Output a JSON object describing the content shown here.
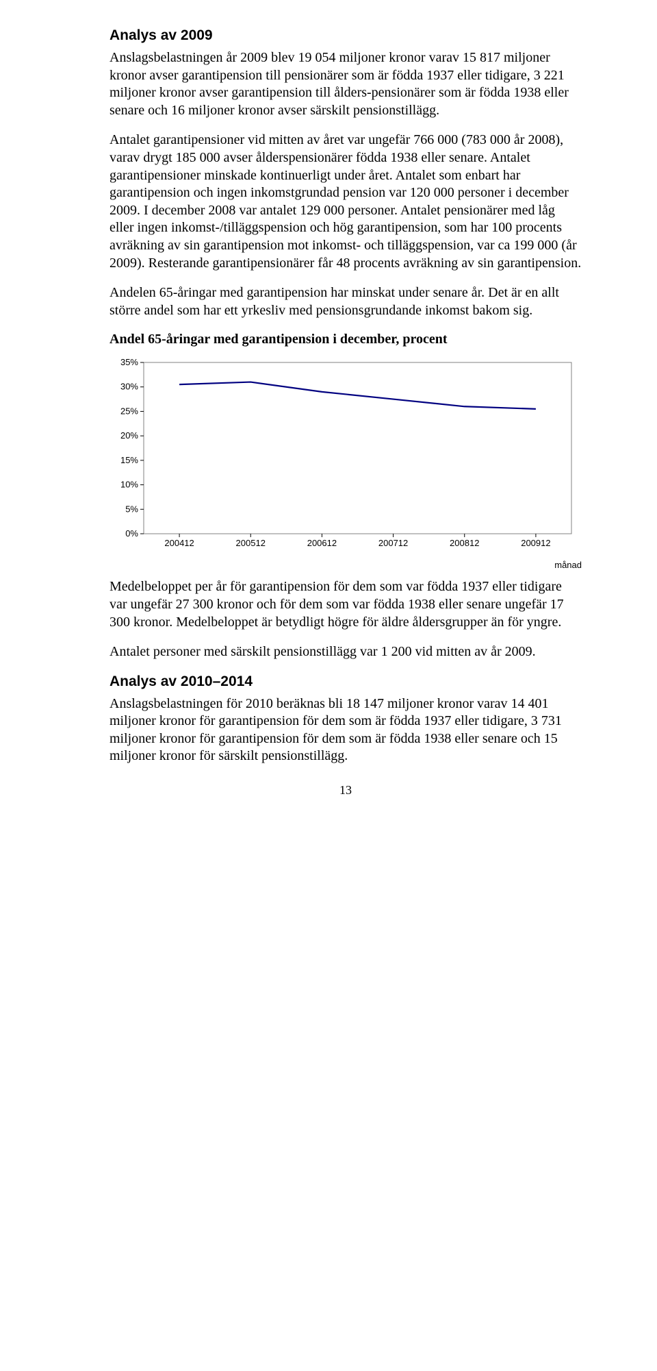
{
  "section1": {
    "heading": "Analys av 2009",
    "p1": "Anslagsbelastningen år 2009 blev 19 054 miljoner kronor varav 15 817 miljoner kronor avser garantipension till pensionärer som är födda 1937 eller tidigare, 3 221 miljoner kronor avser garantipension till ålders-pensionärer som är födda 1938 eller senare och 16 miljoner kronor avser särskilt pensionstillägg.",
    "p2": "Antalet garantipensioner vid mitten av året var ungefär 766 000 (783 000 år 2008), varav drygt 185 000 avser ålderspensionärer födda 1938 eller senare. Antalet garantipensioner minskade kontinuerligt under året. Antalet som enbart har garantipension och ingen inkomstgrundad pension var 120 000 personer i december 2009. I december 2008 var antalet 129 000 personer. Antalet pensionärer med låg eller ingen inkomst-/tilläggspension och hög garantipension, som har 100 procents avräkning av sin garantipension mot inkomst- och tilläggspension, var ca 199 000 (år 2009). Resterande garantipensionärer får 48 procents avräkning av sin garantipension.",
    "p3": "Andelen 65-åringar med garantipension har minskat under senare år. Det är en allt större andel som har ett yrkesliv med pensionsgrundande inkomst bakom sig."
  },
  "chart": {
    "title": "Andel 65-åringar med garantipension i december, procent",
    "type": "line",
    "x_categories": [
      "200412",
      "200512",
      "200612",
      "200712",
      "200812",
      "200912"
    ],
    "y_values": [
      30.5,
      31.0,
      29.0,
      27.5,
      26.0,
      25.5
    ],
    "ylim": [
      0,
      35
    ],
    "ytick_step": 5,
    "y_tick_labels": [
      "0%",
      "5%",
      "10%",
      "15%",
      "20%",
      "25%",
      "30%",
      "35%"
    ],
    "line_color": "#000080",
    "line_width": 2.2,
    "background_color": "#ffffff",
    "frame_color": "#808080",
    "tick_color": "#000000",
    "axis_label_right": "månad",
    "label_fontsize": 13,
    "font_family": "Arial"
  },
  "section2": {
    "p1": "Medelbeloppet per år för garantipension för dem som var födda 1937 eller tidigare var ungefär 27 300 kronor och för dem som var födda 1938 eller senare ungefär 17 300 kronor. Medelbeloppet är betydligt högre för äldre åldersgrupper än för yngre.",
    "p2": "Antalet personer med särskilt pensionstillägg var 1 200 vid mitten av år 2009."
  },
  "section3": {
    "heading": "Analys av 2010–2014",
    "p1": "Anslagsbelastningen för 2010 beräknas bli 18 147 miljoner kronor varav 14 401 miljoner kronor för garantipension för dem som är födda 1937 eller tidigare, 3 731 miljoner kronor för garantipension för dem som är födda 1938 eller senare och 15 miljoner kronor för särskilt pensionstillägg."
  },
  "pageNumber": "13"
}
